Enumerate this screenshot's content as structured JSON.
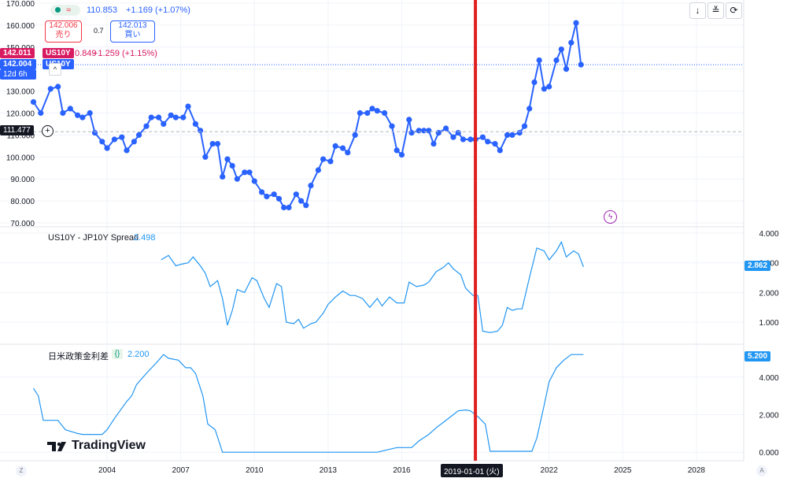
{
  "header": {
    "price": "110.853",
    "change": "+1.169 (+1.07%)",
    "sell_price": "142.006",
    "sell_label": "売り",
    "spread": "0.7",
    "buy_price": "142.013",
    "buy_label": "買い",
    "symbol_overlay": "US10Y",
    "symbol_value": "0.849",
    "symbol_change": "+1.259 (+1.15%)",
    "symbol_label_left": "US10Y",
    "price_tag_main": "142.011",
    "price_tag_second": "142.004",
    "countdown": "12d 6h",
    "crosshair_price": "111.477"
  },
  "tools": {
    "down": "↓",
    "collapse": "≚",
    "refresh": "⟳"
  },
  "logo": {
    "text": "TradingView"
  },
  "crosshair": {
    "date_label": "2019-01-01 (火)"
  },
  "bottom": {
    "left_btn": "Z",
    "right_btn": "A"
  },
  "colors": {
    "main_line": "#2962ff",
    "sub_line": "#2196f3",
    "price_tag_red": "#d81b60",
    "price_tag_blue": "#2962ff",
    "crosshair": "#e02020",
    "grid": "#f0f3fa"
  },
  "chart_data": [
    {
      "type": "line",
      "title": "",
      "ylim": [
        70,
        170
      ],
      "y_ticks": [
        "70.000",
        "80.000",
        "90.000",
        "100.000",
        "110.000",
        "120.000",
        "130.000",
        "140.000",
        "150.000",
        "160.000",
        "170.000"
      ],
      "x_ticks": [
        "2004",
        "2007",
        "2010",
        "2013",
        "2016",
        "2019",
        "2022",
        "2025",
        "2028"
      ],
      "series": [
        {
          "values": [
            [
              2001.0,
              125
            ],
            [
              2001.3,
              120
            ],
            [
              2001.7,
              131
            ],
            [
              2002.0,
              132
            ],
            [
              2002.2,
              120
            ],
            [
              2002.5,
              122
            ],
            [
              2002.8,
              119
            ],
            [
              2003.0,
              118
            ],
            [
              2003.3,
              120
            ],
            [
              2003.5,
              111
            ],
            [
              2003.8,
              107
            ],
            [
              2004.0,
              104
            ],
            [
              2004.3,
              108
            ],
            [
              2004.6,
              109
            ],
            [
              2004.8,
              103
            ],
            [
              2005.1,
              107
            ],
            [
              2005.3,
              110
            ],
            [
              2005.6,
              114
            ],
            [
              2005.8,
              118
            ],
            [
              2006.1,
              118
            ],
            [
              2006.3,
              115
            ],
            [
              2006.6,
              119
            ],
            [
              2006.8,
              118
            ],
            [
              2007.1,
              118
            ],
            [
              2007.3,
              123
            ],
            [
              2007.6,
              115
            ],
            [
              2007.8,
              112
            ],
            [
              2008.0,
              100
            ],
            [
              2008.3,
              106
            ],
            [
              2008.5,
              106
            ],
            [
              2008.7,
              91
            ],
            [
              2008.9,
              99
            ],
            [
              2009.1,
              96
            ],
            [
              2009.3,
              90
            ],
            [
              2009.6,
              93
            ],
            [
              2009.8,
              93
            ],
            [
              2010.0,
              89
            ],
            [
              2010.3,
              84
            ],
            [
              2010.5,
              82
            ],
            [
              2010.8,
              83
            ],
            [
              2011.0,
              81
            ],
            [
              2011.2,
              77
            ],
            [
              2011.4,
              77
            ],
            [
              2011.7,
              83
            ],
            [
              2011.9,
              80
            ],
            [
              2012.1,
              78
            ],
            [
              2012.3,
              87
            ],
            [
              2012.6,
              94
            ],
            [
              2012.8,
              99
            ],
            [
              2013.1,
              98
            ],
            [
              2013.3,
              105
            ],
            [
              2013.6,
              104
            ],
            [
              2013.8,
              102
            ],
            [
              2014.1,
              110
            ],
            [
              2014.3,
              120
            ],
            [
              2014.6,
              120
            ],
            [
              2014.8,
              122
            ],
            [
              2015.0,
              121
            ],
            [
              2015.3,
              120
            ],
            [
              2015.6,
              114
            ],
            [
              2015.8,
              103
            ],
            [
              2016.0,
              101
            ],
            [
              2016.3,
              117
            ],
            [
              2016.4,
              111
            ],
            [
              2016.7,
              112
            ],
            [
              2016.9,
              112
            ],
            [
              2017.1,
              112
            ],
            [
              2017.3,
              106
            ],
            [
              2017.5,
              111
            ],
            [
              2017.8,
              113
            ],
            [
              2018.1,
              109
            ],
            [
              2018.3,
              111
            ],
            [
              2018.5,
              108
            ],
            [
              2018.8,
              108
            ],
            [
              2019.0,
              108
            ],
            [
              2019.3,
              109
            ],
            [
              2019.5,
              107
            ],
            [
              2019.8,
              106
            ],
            [
              2020.0,
              103
            ],
            [
              2020.3,
              110
            ],
            [
              2020.5,
              110
            ],
            [
              2020.8,
              111
            ],
            [
              2021.0,
              114
            ],
            [
              2021.2,
              122
            ],
            [
              2021.4,
              134
            ],
            [
              2021.6,
              144
            ],
            [
              2021.8,
              131
            ],
            [
              2022.0,
              132
            ],
            [
              2022.3,
              144
            ],
            [
              2022.5,
              149
            ],
            [
              2022.7,
              140
            ],
            [
              2022.9,
              152
            ],
            [
              2023.1,
              161
            ],
            [
              2023.3,
              142
            ]
          ]
        }
      ]
    },
    {
      "type": "line",
      "title": "US10Y - JP10Y Spread",
      "last_value": "2.498",
      "price_tag": "2.862",
      "ylim": [
        0.5,
        4
      ],
      "y_ticks": [
        "1.000",
        "2.000",
        "3.000",
        "4.000"
      ],
      "series": [
        {
          "values": [
            [
              2006.2,
              3.1
            ],
            [
              2006.5,
              3.25
            ],
            [
              2006.8,
              2.9
            ],
            [
              2007.0,
              2.95
            ],
            [
              2007.3,
              3.0
            ],
            [
              2007.5,
              3.2
            ],
            [
              2007.8,
              2.9
            ],
            [
              2008.0,
              2.65
            ],
            [
              2008.2,
              2.2
            ],
            [
              2008.5,
              2.4
            ],
            [
              2008.7,
              1.8
            ],
            [
              2008.9,
              0.9
            ],
            [
              2009.1,
              1.4
            ],
            [
              2009.3,
              2.1
            ],
            [
              2009.6,
              2.0
            ],
            [
              2009.9,
              2.5
            ],
            [
              2010.1,
              2.4
            ],
            [
              2010.4,
              1.8
            ],
            [
              2010.6,
              1.5
            ],
            [
              2010.9,
              2.3
            ],
            [
              2011.1,
              2.2
            ],
            [
              2011.3,
              1.0
            ],
            [
              2011.6,
              0.95
            ],
            [
              2011.8,
              1.1
            ],
            [
              2012.0,
              0.8
            ],
            [
              2012.3,
              0.95
            ],
            [
              2012.5,
              1.0
            ],
            [
              2012.8,
              1.3
            ],
            [
              2013.0,
              1.6
            ],
            [
              2013.3,
              1.85
            ],
            [
              2013.6,
              2.05
            ],
            [
              2013.9,
              1.9
            ],
            [
              2014.1,
              1.9
            ],
            [
              2014.4,
              1.8
            ],
            [
              2014.7,
              1.5
            ],
            [
              2015.0,
              1.8
            ],
            [
              2015.2,
              1.55
            ],
            [
              2015.5,
              1.85
            ],
            [
              2015.8,
              1.65
            ],
            [
              2016.1,
              1.65
            ],
            [
              2016.3,
              2.35
            ],
            [
              2016.6,
              2.2
            ],
            [
              2016.9,
              2.25
            ],
            [
              2017.1,
              2.35
            ],
            [
              2017.4,
              2.7
            ],
            [
              2017.7,
              2.85
            ],
            [
              2017.9,
              3.0
            ],
            [
              2018.1,
              2.8
            ],
            [
              2018.4,
              2.6
            ],
            [
              2018.6,
              2.15
            ],
            [
              2018.9,
              1.9
            ],
            [
              2019.1,
              1.9
            ],
            [
              2019.3,
              0.7
            ],
            [
              2019.6,
              0.65
            ],
            [
              2019.9,
              0.7
            ],
            [
              2020.1,
              0.9
            ],
            [
              2020.3,
              1.5
            ],
            [
              2020.5,
              1.4
            ],
            [
              2020.7,
              1.45
            ],
            [
              2020.9,
              1.45
            ],
            [
              2021.2,
              2.5
            ],
            [
              2021.5,
              3.5
            ],
            [
              2021.8,
              3.4
            ],
            [
              2022.0,
              3.1
            ],
            [
              2022.3,
              3.4
            ],
            [
              2022.5,
              3.7
            ],
            [
              2022.7,
              3.2
            ],
            [
              2023.0,
              3.4
            ],
            [
              2023.2,
              3.3
            ],
            [
              2023.4,
              2.862
            ]
          ]
        }
      ]
    },
    {
      "type": "line",
      "title": "日米政策金利差",
      "last_value": "2.200",
      "price_tag": "5.200",
      "ylim": [
        -0.2,
        5.5
      ],
      "y_ticks": [
        "0.000",
        "2.000",
        "4.000"
      ],
      "series": [
        {
          "values": [
            [
              2001.0,
              3.4
            ],
            [
              2001.2,
              3.0
            ],
            [
              2001.4,
              1.7
            ],
            [
              2002.0,
              1.7
            ],
            [
              2002.3,
              1.2
            ],
            [
              2002.8,
              1.0
            ],
            [
              2003.0,
              0.95
            ],
            [
              2003.8,
              0.95
            ],
            [
              2004.0,
              1.2
            ],
            [
              2004.3,
              1.8
            ],
            [
              2004.8,
              2.7
            ],
            [
              2005.0,
              3.0
            ],
            [
              2005.2,
              3.6
            ],
            [
              2005.6,
              4.2
            ],
            [
              2006.0,
              4.75
            ],
            [
              2006.3,
              5.2
            ],
            [
              2006.5,
              5.0
            ],
            [
              2006.9,
              4.9
            ],
            [
              2007.2,
              4.5
            ],
            [
              2007.4,
              4.5
            ],
            [
              2007.6,
              4.2
            ],
            [
              2007.9,
              3.0
            ],
            [
              2008.1,
              1.5
            ],
            [
              2008.4,
              1.2
            ],
            [
              2008.7,
              0.0
            ],
            [
              2015.0,
              0.0
            ],
            [
              2015.8,
              0.25
            ],
            [
              2016.4,
              0.25
            ],
            [
              2016.7,
              0.6
            ],
            [
              2017.1,
              0.95
            ],
            [
              2017.4,
              1.3
            ],
            [
              2017.7,
              1.6
            ],
            [
              2018.0,
              1.9
            ],
            [
              2018.3,
              2.2
            ],
            [
              2018.6,
              2.25
            ],
            [
              2018.8,
              2.2
            ],
            [
              2019.1,
              1.9
            ],
            [
              2019.4,
              1.5
            ],
            [
              2019.6,
              0.05
            ],
            [
              2020.0,
              0.05
            ],
            [
              2021.3,
              0.05
            ],
            [
              2021.5,
              0.75
            ],
            [
              2021.8,
              2.5
            ],
            [
              2022.0,
              3.75
            ],
            [
              2022.3,
              4.5
            ],
            [
              2022.6,
              4.9
            ],
            [
              2022.9,
              5.2
            ],
            [
              2023.4,
              5.2
            ]
          ]
        }
      ]
    }
  ]
}
